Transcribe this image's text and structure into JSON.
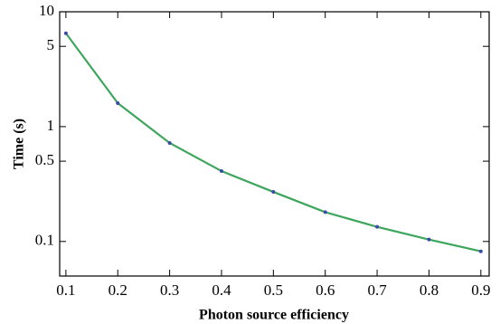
{
  "chart_data": {
    "type": "line",
    "x_label": "Photon source efficiency",
    "y_label": "Time (s)",
    "x": [
      0.1,
      0.2,
      0.3,
      0.4,
      0.5,
      0.6,
      0.7,
      0.8,
      0.9
    ],
    "series": [
      {
        "color": "#3da55c",
        "marker_color": "#3b4aa8",
        "values": [
          6.5,
          1.6,
          0.72,
          0.41,
          0.27,
          0.18,
          0.134,
          0.104,
          0.082
        ]
      }
    ],
    "xlim": [
      0.088,
      0.916
    ],
    "ylim": [
      0.05,
      10
    ],
    "y_scale": "log",
    "xticks": [
      0.1,
      0.2,
      0.3,
      0.4,
      0.5,
      0.6,
      0.7,
      0.8,
      0.9
    ],
    "yticks": [
      0.1,
      0.5,
      1,
      5,
      10
    ],
    "grid": false
  }
}
